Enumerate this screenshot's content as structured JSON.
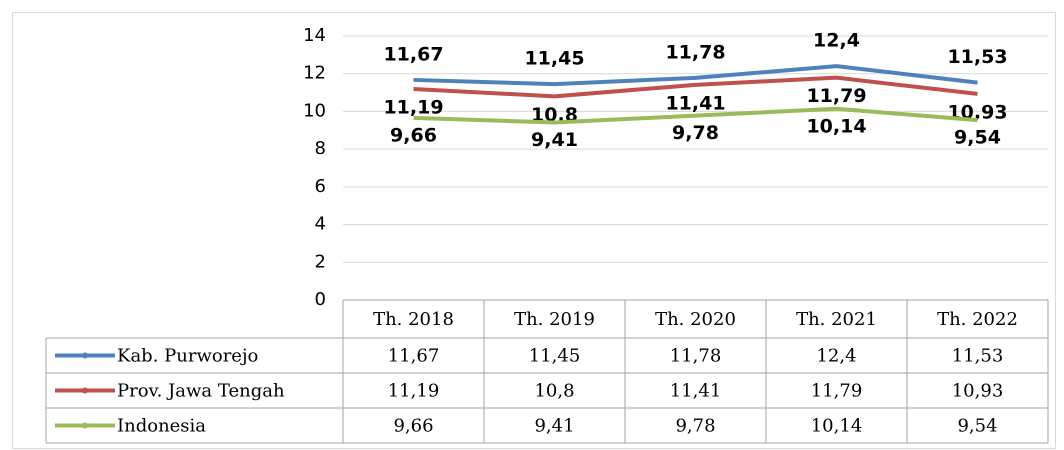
{
  "chart_data": {
    "type": "line",
    "categories": [
      "Th. 2018",
      "Th. 2019",
      "Th. 2020",
      "Th. 2021",
      "Th. 2022"
    ],
    "series": [
      {
        "name": "Kab. Purworejo",
        "color": "#4f81bd",
        "values": [
          11.67,
          11.45,
          11.78,
          12.4,
          11.53
        ],
        "value_labels": [
          "11,67",
          "11,45",
          "11,78",
          "12,4",
          "11,53"
        ]
      },
      {
        "name": "Prov. Jawa Tengah",
        "color": "#c0504d",
        "values": [
          11.19,
          10.8,
          11.41,
          11.79,
          10.93
        ],
        "value_labels": [
          "11,19",
          "10,8",
          "11,41",
          "11,79",
          "10,93"
        ]
      },
      {
        "name": "Indonesia",
        "color": "#9bbb59",
        "values": [
          9.66,
          9.41,
          9.78,
          10.14,
          9.54
        ],
        "value_labels": [
          "9,66",
          "9,41",
          "9,78",
          "10,14",
          "9,54"
        ]
      }
    ],
    "ylim": [
      0,
      14
    ],
    "yticks": [
      0,
      2,
      4,
      6,
      8,
      10,
      12,
      14
    ],
    "grid": true
  }
}
